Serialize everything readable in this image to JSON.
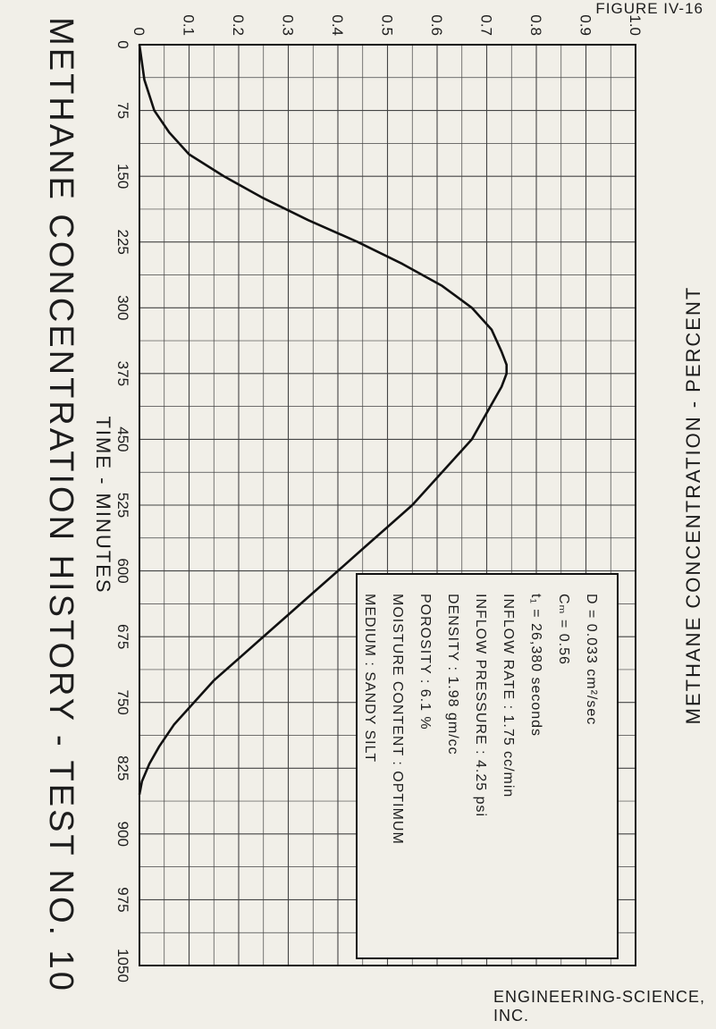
{
  "figure_label": "FIGURE IV-16",
  "footer": "ENGINEERING-SCIENCE, INC.",
  "chart_data": {
    "type": "line",
    "title": "METHANE CONCENTRATION HISTORY - TEST NO. 10",
    "xlabel": "TIME - MINUTES",
    "ylabel": "METHANE CONCENTRATION - PERCENT",
    "xlim": [
      0,
      1050
    ],
    "ylim": [
      0,
      1.0
    ],
    "x_ticks": [
      "0",
      "75",
      "150",
      "225",
      "300",
      "375",
      "450",
      "525",
      "600",
      "675",
      "750",
      "825",
      "900",
      "975",
      "1050"
    ],
    "y_ticks": [
      "0",
      "0.1",
      "0.2",
      "0.3",
      "0.4",
      "0.5",
      "0.6",
      "0.7",
      "0.8",
      "0.9",
      "1.0"
    ],
    "grid": true,
    "series": [
      {
        "x": [
          0,
          40,
          75,
          100,
          125,
          150,
          175,
          200,
          225,
          250,
          275,
          300,
          325,
          350,
          365,
          375,
          390,
          410,
          430,
          450,
          475,
          500,
          525,
          550,
          575,
          600,
          625,
          650,
          675,
          700,
          725,
          750,
          775,
          800,
          820,
          840,
          855
        ],
        "y": [
          0,
          0.01,
          0.03,
          0.06,
          0.1,
          0.17,
          0.25,
          0.34,
          0.44,
          0.53,
          0.61,
          0.67,
          0.71,
          0.73,
          0.74,
          0.74,
          0.73,
          0.71,
          0.69,
          0.67,
          0.63,
          0.59,
          0.55,
          0.5,
          0.45,
          0.4,
          0.35,
          0.3,
          0.25,
          0.2,
          0.15,
          0.11,
          0.07,
          0.04,
          0.02,
          0.005,
          0
        ]
      }
    ],
    "parameters": [
      "D = 0.033 cm²/sec",
      "Cₘ = 0.56",
      "t₁ = 26,380 seconds",
      "INFLOW RATE : 1.75 cc/min",
      "INFLOW PRESSURE : 4.25 psi",
      "DENSITY : 1.98 gm/cc",
      "POROSITY : 6.1 %",
      "MOISTURE CONTENT : OPTIMUM",
      "MEDIUM : SANDY SILT"
    ]
  }
}
